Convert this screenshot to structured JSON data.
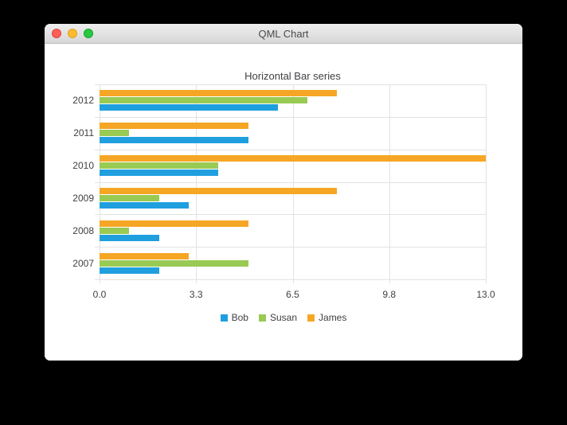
{
  "window": {
    "title": "QML Chart",
    "controls": {
      "close": "close",
      "minimize": "minimize",
      "zoom": "zoom"
    }
  },
  "chart_data": {
    "type": "bar",
    "orientation": "horizontal",
    "title": "Horizontal Bar series",
    "categories": [
      "2007",
      "2008",
      "2009",
      "2010",
      "2011",
      "2012"
    ],
    "series": [
      {
        "name": "Bob",
        "color": "#209fdf",
        "values": [
          2,
          2,
          3,
          4,
          5,
          6
        ]
      },
      {
        "name": "Susan",
        "color": "#99ca53",
        "values": [
          5,
          1,
          2,
          4,
          1,
          7
        ]
      },
      {
        "name": "James",
        "color": "#f6a625",
        "values": [
          3,
          5,
          8,
          13,
          5,
          8
        ]
      }
    ],
    "x_axis": {
      "min": 0,
      "max": 13,
      "tick_labels": [
        "0.0",
        "3.3",
        "6.5",
        "9.8",
        "13.0"
      ]
    },
    "legend": {
      "position": "bottom",
      "entries": [
        "Bob",
        "Susan",
        "James"
      ]
    },
    "grid": true,
    "colors": {
      "grid": "#e2e2e2",
      "label": "#404044",
      "background": "#ffffff"
    }
  }
}
